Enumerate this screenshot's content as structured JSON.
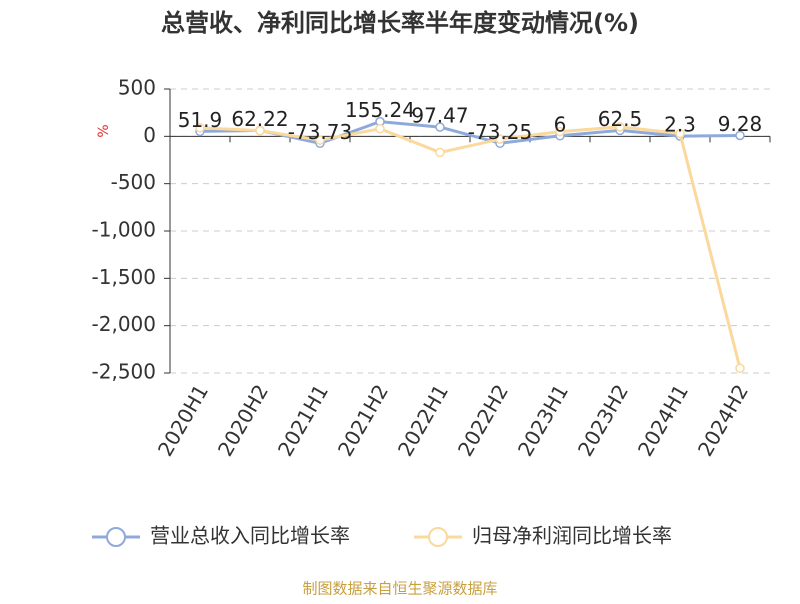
{
  "chart_data": {
    "type": "line",
    "title": "总营收、净利同比增长率半年度变动情况(%)",
    "y_label": "%",
    "categories": [
      "2020H1",
      "2020H2",
      "2021H1",
      "2021H2",
      "2022H1",
      "2022H2",
      "2023H1",
      "2023H2",
      "2024H1",
      "2024H2"
    ],
    "series": [
      {
        "name": "营业总收入同比增长率",
        "color": "#8eaadb",
        "values": [
          51.9,
          62.22,
          -73.73,
          155.24,
          97.47,
          -73.25,
          6,
          62.5,
          2.3,
          9.28
        ]
      },
      {
        "name": "归母净利润同比增长率",
        "color": "#fbd89c",
        "values": [
          90,
          60,
          -40,
          80,
          -170,
          -30,
          50,
          100,
          30,
          -2450
        ]
      }
    ],
    "ylim": [
      -2500,
      500
    ],
    "yticks": [
      500,
      0,
      -500,
      {
        "value": -1000,
        "label": "-1,000"
      },
      {
        "value": -1500,
        "label": "-1,500"
      },
      {
        "value": -2000,
        "label": "-2,000"
      },
      {
        "value": -2500,
        "label": "-2,500"
      }
    ],
    "grid": true,
    "legend": "bottom",
    "source": "制图数据来自恒生聚源数据库"
  }
}
